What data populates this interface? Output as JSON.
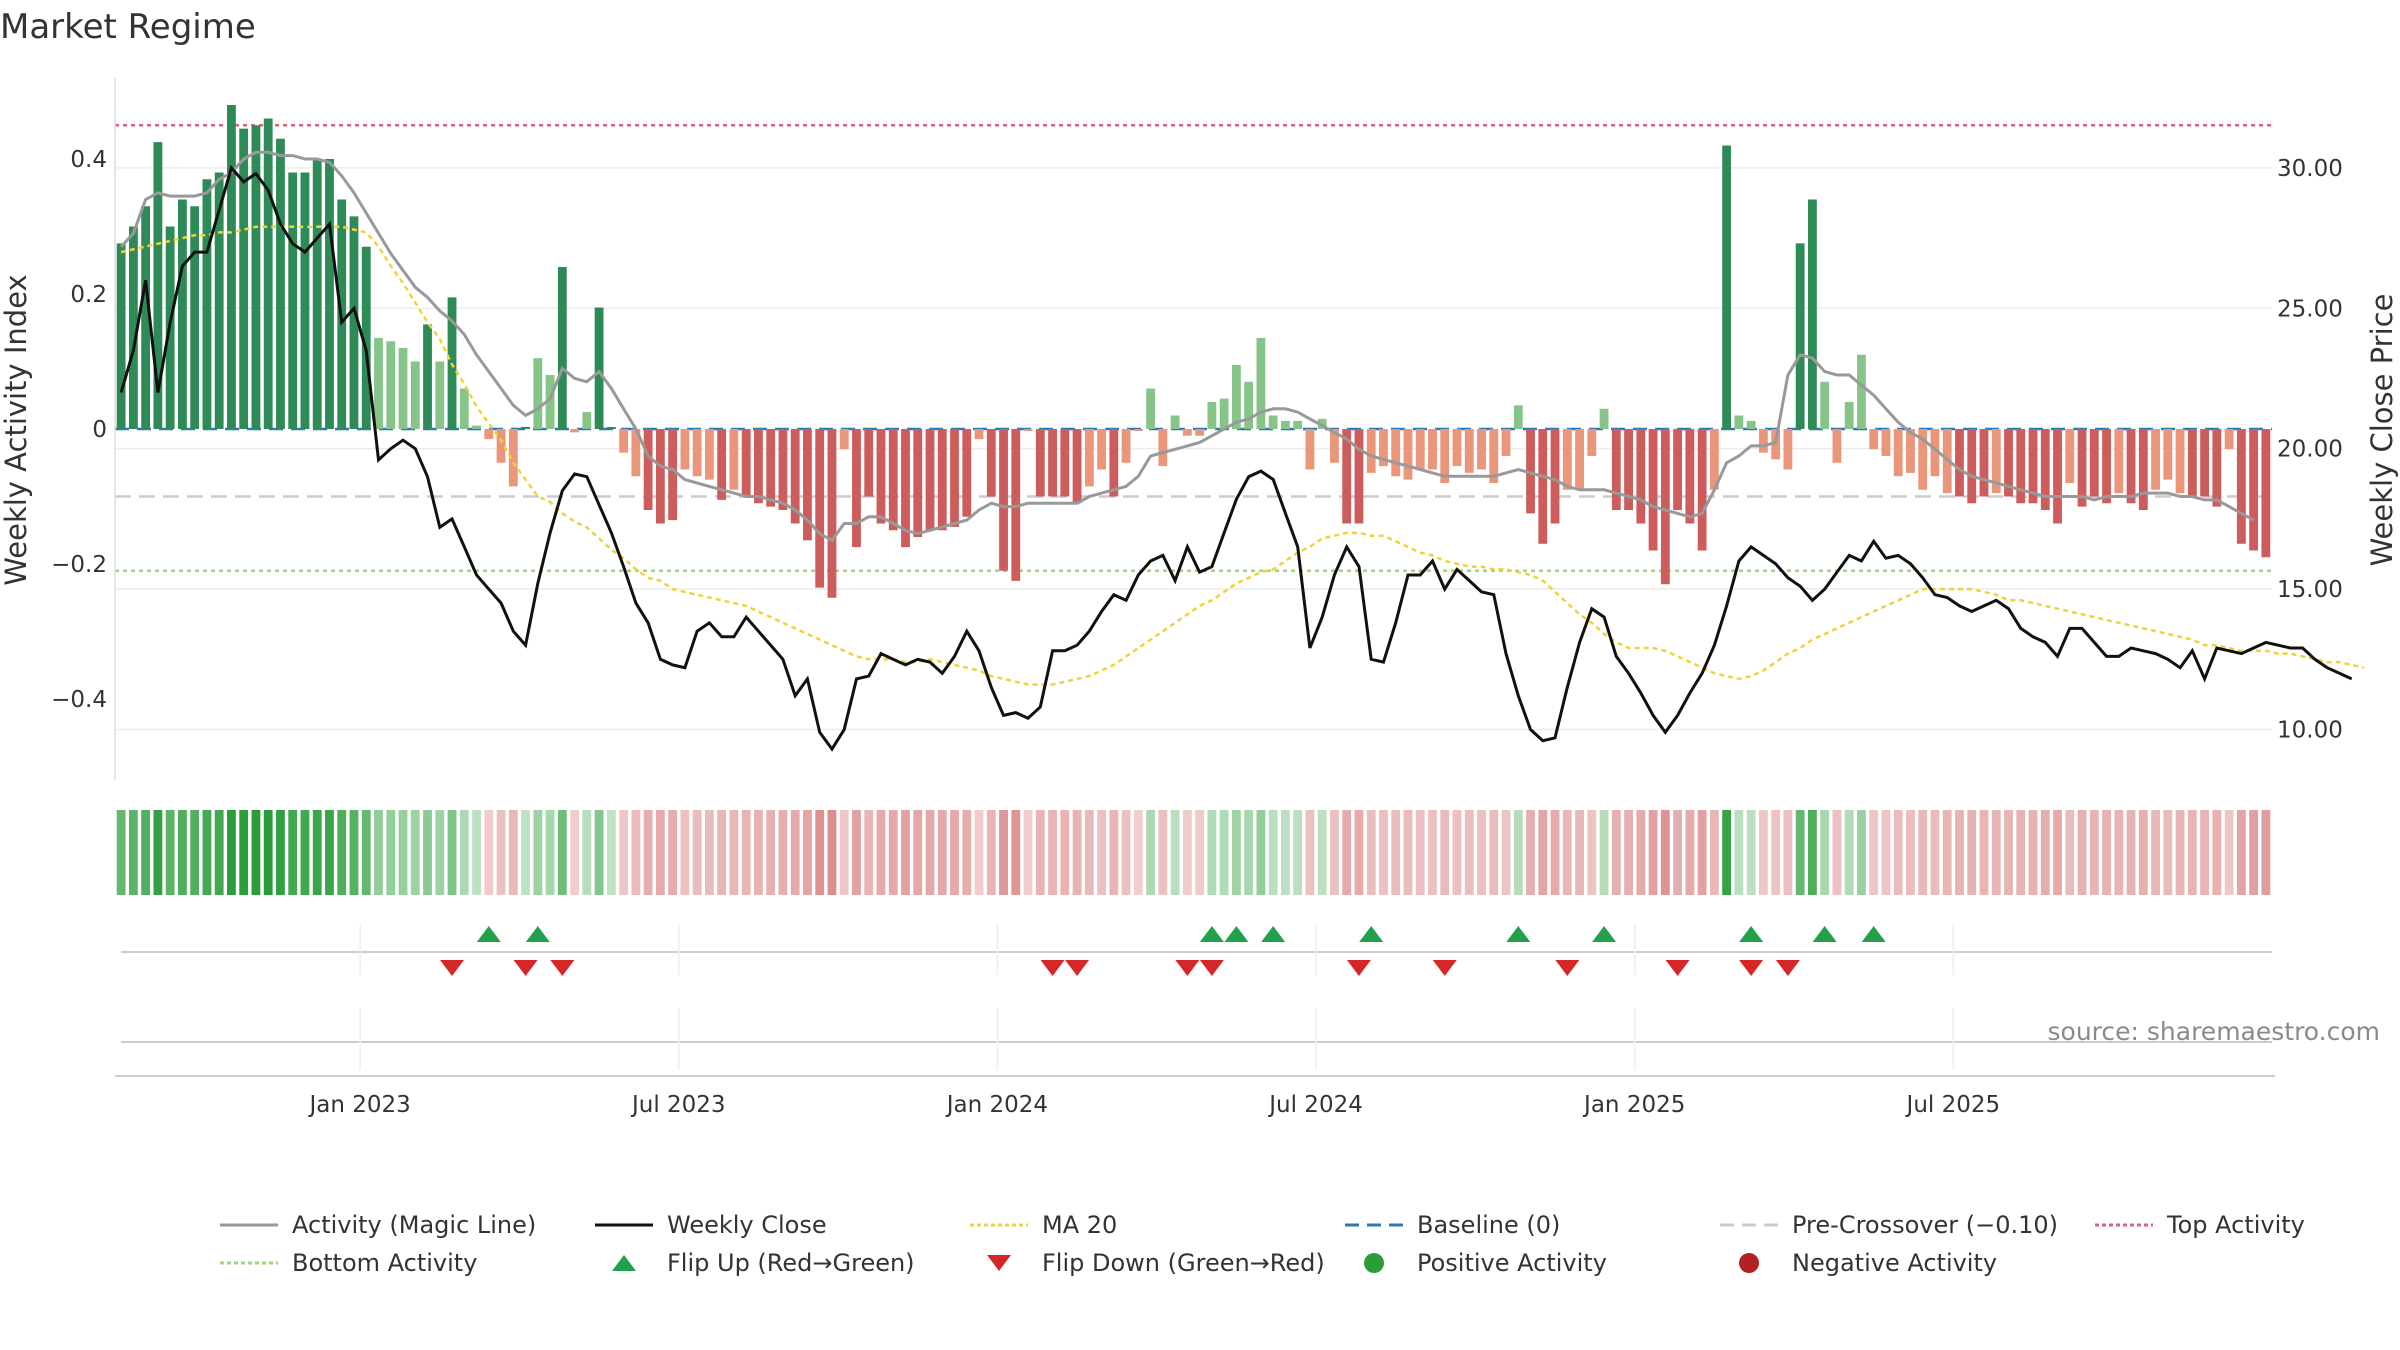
{
  "chart_data": {
    "type": "bar+line",
    "title": "Market Regime",
    "ylabel_left": "Weekly Activity Index",
    "ylabel_right": "Weekly Close Price",
    "ylim_left": [
      -0.52,
      0.52
    ],
    "ylim_right": [
      8.2,
      33.2
    ],
    "left_ticks": [
      {
        "v": 0.4,
        "label": "0.4"
      },
      {
        "v": 0.2,
        "label": "0.2"
      },
      {
        "v": 0,
        "label": "0"
      },
      {
        "v": -0.2,
        "label": "−0.2"
      },
      {
        "v": -0.4,
        "label": "−0.4"
      }
    ],
    "right_ticks": [
      {
        "v": 30,
        "label": "30.00"
      },
      {
        "v": 25,
        "label": "25.00"
      },
      {
        "v": 20,
        "label": "20.00"
      },
      {
        "v": 15,
        "label": "15.00"
      },
      {
        "v": 10,
        "label": "10.00"
      }
    ],
    "x_ticks": [
      "Jan 2023",
      "Jul 2023",
      "Jan 2024",
      "Jul 2024",
      "Jan 2025",
      "Jul 2025"
    ],
    "reference_lines": {
      "top_activity": 0.45,
      "bottom_activity": -0.21,
      "pre_crossover": -0.1,
      "baseline": 0
    },
    "colors": {
      "strong_pos": "#2e8b57",
      "weak_pos": "#86c48a",
      "strong_neg": "#cd5c5c",
      "weak_neg": "#e9967a",
      "close": "#111111",
      "magic": "#999999",
      "ma20": "#f0d33a",
      "baseline": "#2f78b8",
      "pre_crossover": "#cccccc",
      "top": "#e0607a",
      "bottom": "#9ed67a",
      "flip_up": "#22a04b",
      "flip_down": "#d62728",
      "pos_dot": "#2a9d3a",
      "neg_dot": "#b22222"
    },
    "activity": [
      0.275,
      0.3,
      0.33,
      0.425,
      0.3,
      0.34,
      0.33,
      0.37,
      0.38,
      0.48,
      0.445,
      0.45,
      0.46,
      0.43,
      0.38,
      0.38,
      0.4,
      0.4,
      0.34,
      0.315,
      0.27,
      0.135,
      0.13,
      0.12,
      0.1,
      0.155,
      0.1,
      0.195,
      0.06,
      0.005,
      -0.015,
      -0.05,
      -0.085,
      0.003,
      0.105,
      0.08,
      0.24,
      -0.005,
      0.025,
      0.18,
      0.003,
      -0.035,
      -0.07,
      -0.12,
      -0.14,
      -0.135,
      -0.06,
      -0.07,
      -0.075,
      -0.105,
      -0.09,
      -0.1,
      -0.11,
      -0.115,
      -0.12,
      -0.14,
      -0.165,
      -0.235,
      -0.25,
      -0.03,
      -0.175,
      -0.1,
      -0.14,
      -0.15,
      -0.175,
      -0.16,
      -0.15,
      -0.15,
      -0.145,
      -0.13,
      -0.015,
      -0.1,
      -0.21,
      -0.225,
      -0.003,
      -0.1,
      -0.1,
      -0.1,
      -0.11,
      -0.085,
      -0.06,
      -0.1,
      -0.05,
      -0.003,
      0.06,
      -0.055,
      0.02,
      -0.01,
      -0.01,
      0.04,
      0.045,
      0.095,
      0.07,
      0.135,
      0.02,
      0.012,
      0.012,
      -0.06,
      0.015,
      -0.05,
      -0.14,
      -0.14,
      -0.065,
      -0.055,
      -0.07,
      -0.075,
      -0.06,
      -0.06,
      -0.08,
      -0.055,
      -0.065,
      -0.06,
      -0.08,
      -0.04,
      0.035,
      -0.125,
      -0.17,
      -0.14,
      -0.09,
      -0.09,
      -0.04,
      0.03,
      -0.12,
      -0.12,
      -0.14,
      -0.18,
      -0.23,
      -0.12,
      -0.14,
      -0.18,
      -0.09,
      0.42,
      0.02,
      0.012,
      -0.035,
      -0.045,
      -0.06,
      0.275,
      0.34,
      0.07,
      -0.05,
      0.04,
      0.11,
      -0.03,
      -0.04,
      -0.07,
      -0.065,
      -0.09,
      -0.07,
      -0.095,
      -0.1,
      -0.11,
      -0.1,
      -0.095,
      -0.1,
      -0.11,
      -0.11,
      -0.12,
      -0.14,
      -0.08,
      -0.115,
      -0.1,
      -0.11,
      -0.095,
      -0.11,
      -0.12,
      -0.09,
      -0.075,
      -0.095,
      -0.1,
      -0.1,
      -0.115,
      -0.03,
      -0.17,
      -0.18,
      -0.19
    ],
    "magic_line": [
      0.27,
      0.29,
      0.34,
      0.35,
      0.345,
      0.345,
      0.345,
      0.35,
      0.37,
      0.38,
      0.4,
      0.41,
      0.41,
      0.405,
      0.405,
      0.4,
      0.4,
      0.395,
      0.375,
      0.35,
      0.32,
      0.29,
      0.26,
      0.235,
      0.21,
      0.195,
      0.175,
      0.16,
      0.14,
      0.11,
      0.085,
      0.06,
      0.035,
      0.02,
      0.03,
      0.045,
      0.09,
      0.075,
      0.07,
      0.085,
      0.06,
      0.03,
      0.0,
      -0.04,
      -0.055,
      -0.06,
      -0.075,
      -0.08,
      -0.085,
      -0.09,
      -0.095,
      -0.1,
      -0.1,
      -0.105,
      -0.11,
      -0.12,
      -0.135,
      -0.155,
      -0.165,
      -0.14,
      -0.14,
      -0.13,
      -0.13,
      -0.14,
      -0.15,
      -0.155,
      -0.15,
      -0.145,
      -0.14,
      -0.135,
      -0.12,
      -0.11,
      -0.115,
      -0.115,
      -0.11,
      -0.11,
      -0.11,
      -0.11,
      -0.11,
      -0.1,
      -0.095,
      -0.09,
      -0.085,
      -0.07,
      -0.04,
      -0.035,
      -0.03,
      -0.025,
      -0.02,
      -0.01,
      0.0,
      0.01,
      0.015,
      0.025,
      0.03,
      0.03,
      0.025,
      0.015,
      0.005,
      -0.005,
      -0.015,
      -0.03,
      -0.04,
      -0.045,
      -0.05,
      -0.055,
      -0.06,
      -0.065,
      -0.07,
      -0.07,
      -0.07,
      -0.07,
      -0.07,
      -0.065,
      -0.06,
      -0.065,
      -0.07,
      -0.075,
      -0.085,
      -0.09,
      -0.09,
      -0.09,
      -0.095,
      -0.1,
      -0.105,
      -0.115,
      -0.12,
      -0.125,
      -0.13,
      -0.125,
      -0.09,
      -0.05,
      -0.04,
      -0.025,
      -0.025,
      -0.02,
      0.08,
      0.11,
      0.105,
      0.085,
      0.08,
      0.08,
      0.065,
      0.05,
      0.03,
      0.01,
      -0.005,
      -0.015,
      -0.03,
      -0.045,
      -0.06,
      -0.07,
      -0.075,
      -0.08,
      -0.085,
      -0.09,
      -0.095,
      -0.1,
      -0.1,
      -0.1,
      -0.1,
      -0.105,
      -0.1,
      -0.1,
      -0.1,
      -0.095,
      -0.095,
      -0.095,
      -0.1,
      -0.1,
      -0.105,
      -0.105,
      -0.115,
      -0.125,
      -0.135
    ],
    "weekly_close": [
      22.0,
      23.5,
      26.0,
      22.0,
      24.5,
      26.5,
      27.0,
      27.0,
      28.5,
      30.0,
      29.5,
      29.8,
      29.2,
      28.0,
      27.3,
      27.0,
      27.5,
      28.0,
      24.5,
      25.0,
      23.5,
      19.6,
      20.0,
      20.3,
      20.0,
      19.0,
      17.2,
      17.5,
      16.5,
      15.5,
      15.0,
      14.5,
      13.5,
      13.0,
      15.2,
      17.0,
      18.5,
      19.1,
      19.0,
      18.0,
      17.0,
      15.8,
      14.5,
      13.8,
      12.5,
      12.3,
      12.2,
      13.5,
      13.8,
      13.3,
      13.3,
      14.0,
      13.5,
      13.0,
      12.5,
      11.2,
      11.8,
      9.9,
      9.3,
      10.0,
      11.8,
      11.9,
      12.7,
      12.5,
      12.3,
      12.5,
      12.4,
      12.0,
      12.6,
      13.5,
      12.8,
      11.5,
      10.5,
      10.6,
      10.4,
      10.8,
      12.8,
      12.8,
      13.0,
      13.5,
      14.2,
      14.8,
      14.6,
      15.5,
      16.0,
      16.2,
      15.3,
      16.5,
      15.6,
      15.8,
      17.0,
      18.2,
      19.0,
      19.2,
      18.9,
      17.7,
      16.5,
      12.9,
      14.0,
      15.5,
      16.5,
      15.8,
      12.5,
      12.4,
      13.8,
      15.5,
      15.5,
      16.0,
      15.0,
      15.7,
      15.3,
      14.9,
      14.8,
      12.7,
      11.2,
      10.0,
      9.6,
      9.7,
      11.5,
      13.1,
      14.3,
      14.0,
      12.6,
      12.0,
      11.3,
      10.5,
      9.9,
      10.5,
      11.3,
      12.0,
      13.0,
      14.4,
      16.0,
      16.5,
      16.2,
      15.9,
      15.4,
      15.1,
      14.6,
      15.0,
      15.6,
      16.2,
      16.0,
      16.7,
      16.1,
      16.2,
      15.9,
      15.4,
      14.8,
      14.7,
      14.4,
      14.2,
      14.4,
      14.6,
      14.3,
      13.6,
      13.3,
      13.1,
      12.6,
      13.6,
      13.6,
      13.1,
      12.6,
      12.6,
      12.9,
      12.8,
      12.7,
      12.5,
      12.2,
      12.8,
      11.8,
      12.9,
      12.8,
      12.7,
      12.9,
      13.1,
      13.0,
      12.9,
      12.9,
      12.5,
      12.2,
      12.0,
      11.8
    ],
    "ma20": [
      27.0,
      27.1,
      27.2,
      27.3,
      27.4,
      27.5,
      27.6,
      27.6,
      27.7,
      27.7,
      27.8,
      27.9,
      27.9,
      27.9,
      27.9,
      27.9,
      27.9,
      27.9,
      27.9,
      27.8,
      27.7,
      27.2,
      26.5,
      25.9,
      25.2,
      24.5,
      23.9,
      23.0,
      22.3,
      21.5,
      20.9,
      20.3,
      19.5,
      18.9,
      18.3,
      18.1,
      17.7,
      17.4,
      17.2,
      16.8,
      16.4,
      16.1,
      15.7,
      15.4,
      15.3,
      15.0,
      14.9,
      14.8,
      14.7,
      14.6,
      14.5,
      14.4,
      14.2,
      14.0,
      13.8,
      13.6,
      13.4,
      13.2,
      13.0,
      12.8,
      12.6,
      12.5,
      12.5,
      12.5,
      12.4,
      12.4,
      12.5,
      12.4,
      12.3,
      12.2,
      12.1,
      11.9,
      11.8,
      11.7,
      11.6,
      11.6,
      11.6,
      11.7,
      11.8,
      11.9,
      12.1,
      12.3,
      12.6,
      12.9,
      13.2,
      13.5,
      13.8,
      14.1,
      14.4,
      14.6,
      14.9,
      15.2,
      15.4,
      15.6,
      15.7,
      16.0,
      16.3,
      16.5,
      16.8,
      16.9,
      17.0,
      17.0,
      16.9,
      16.9,
      16.7,
      16.5,
      16.3,
      16.2,
      16.0,
      15.9,
      15.8,
      15.8,
      15.7,
      15.7,
      15.6,
      15.5,
      15.3,
      14.9,
      14.5,
      14.1,
      13.8,
      13.4,
      13.1,
      12.9,
      12.9,
      12.9,
      12.8,
      12.6,
      12.4,
      12.2,
      12.0,
      11.9,
      11.8,
      11.9,
      12.1,
      12.4,
      12.7,
      12.9,
      13.2,
      13.4,
      13.6,
      13.8,
      14.0,
      14.2,
      14.4,
      14.6,
      14.8,
      15.0,
      15.0,
      15.0,
      15.0,
      15.0,
      14.9,
      14.8,
      14.6,
      14.6,
      14.5,
      14.4,
      14.3,
      14.2,
      14.1,
      14.0,
      13.9,
      13.8,
      13.7,
      13.6,
      13.5,
      13.4,
      13.3,
      13.2,
      13.0,
      13.0,
      12.9,
      12.8,
      12.8,
      12.8,
      12.7,
      12.7,
      12.6,
      12.5,
      12.4,
      12.4,
      12.3,
      12.2
    ],
    "flip_up_weeks": [
      30,
      34,
      89,
      91,
      94,
      102,
      114,
      121,
      133,
      139,
      143
    ],
    "flip_down_weeks": [
      27,
      33,
      36,
      76,
      78,
      87,
      89,
      101,
      108,
      118,
      127,
      133,
      136
    ],
    "legend": [
      {
        "label": "Activity (Magic Line)",
        "kind": "line",
        "color": "#999999",
        "dash": ""
      },
      {
        "label": "Weekly Close",
        "kind": "line",
        "color": "#111111",
        "dash": ""
      },
      {
        "label": "MA 20",
        "kind": "line",
        "color": "#f0d33a",
        "dash": "4,3"
      },
      {
        "label": "Baseline (0)",
        "kind": "line",
        "color": "#2f78b8",
        "dash": "14,8"
      },
      {
        "label": "Pre-Crossover (−0.10)",
        "kind": "line",
        "color": "#cccccc",
        "dash": "14,8"
      },
      {
        "label": "Top Activity",
        "kind": "line",
        "color": "#e0607a",
        "dash": "4,3"
      },
      {
        "label": "Bottom Activity",
        "kind": "line",
        "color": "#9ed67a",
        "dash": "4,3"
      },
      {
        "label": "Flip Up (Red→Green)",
        "kind": "tri-up",
        "color": "#22a04b",
        "dash": ""
      },
      {
        "label": "Flip Down (Green→Red)",
        "kind": "tri-down",
        "color": "#d62728",
        "dash": ""
      },
      {
        "label": "Positive Activity",
        "kind": "dot",
        "color": "#2a9d3a",
        "dash": ""
      },
      {
        "label": "Negative Activity",
        "kind": "dot",
        "color": "#b22222",
        "dash": ""
      }
    ],
    "source": "source: sharemaestro.com"
  }
}
